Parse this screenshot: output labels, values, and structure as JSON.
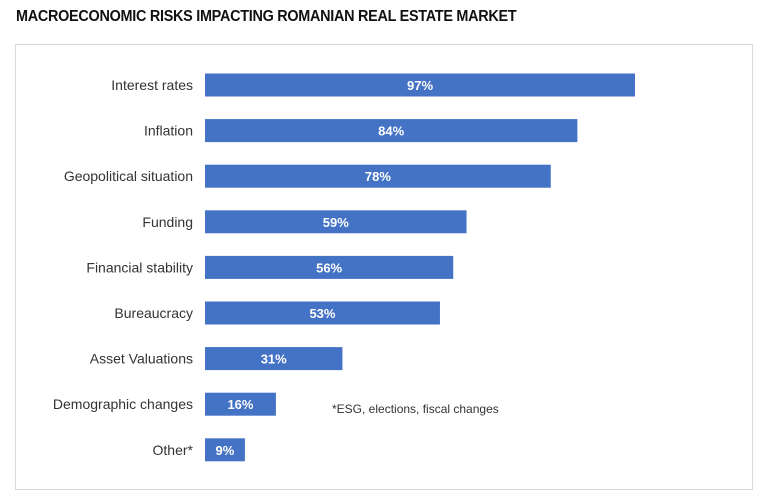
{
  "chart_data": {
    "type": "bar",
    "orientation": "horizontal",
    "title": "MACROECONOMIC RISKS IMPACTING ROMANIAN REAL ESTATE MARKET",
    "categories": [
      "Interest rates",
      "Inflation",
      "Geopolitical situation",
      "Funding",
      "Financial stability",
      "Bureaucracy",
      "Asset Valuations",
      "Demographic changes",
      "Other*"
    ],
    "values": [
      97,
      84,
      78,
      59,
      56,
      53,
      31,
      16,
      9
    ],
    "value_labels": [
      "97%",
      "84%",
      "78%",
      "59%",
      "56%",
      "53%",
      "31%",
      "16%",
      "9%"
    ],
    "unit": "%",
    "xlim": [
      0,
      100
    ],
    "grid": false,
    "bar_color": "#4472C4",
    "annotation": "*ESG, elections, fiscal changes"
  }
}
